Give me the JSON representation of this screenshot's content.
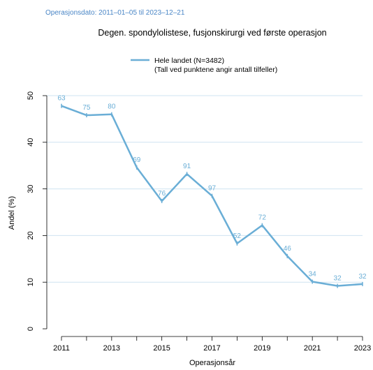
{
  "chart_data": {
    "type": "line",
    "subtitle": "Operasjonsdato: 2011–01–05 til 2023–12–21",
    "title": "Degen. spondylolistese, fusjonskirurgi ved første operasjon",
    "legend": {
      "line1": "Hele landet (N=3482)",
      "line2": "(Tall ved punktene angir antall tilfeller)",
      "placement": "top-center"
    },
    "xlabel": "Operasjonsår",
    "ylabel": "Andel (%)",
    "ylim": [
      0,
      50
    ],
    "xlim": [
      2011,
      2023
    ],
    "yticks": [
      0,
      10,
      20,
      30,
      40,
      50
    ],
    "xticks": [
      2011,
      2012,
      2013,
      2014,
      2015,
      2016,
      2017,
      2018,
      2019,
      2020,
      2021,
      2022,
      2023
    ],
    "xtick_labels": [
      "2011",
      "",
      "2013",
      "",
      "2015",
      "",
      "2017",
      "",
      "2019",
      "",
      "2021",
      "",
      "2023"
    ],
    "grid": "horizontal",
    "colors": {
      "line": "#6aaed6",
      "grid": "#cfe3f1",
      "subtitle": "#4a86c6"
    },
    "series": [
      {
        "name": "Hele landet (N=3482)",
        "x": [
          2011,
          2012,
          2013,
          2014,
          2015,
          2016,
          2017,
          2018,
          2019,
          2020,
          2021,
          2022,
          2023
        ],
        "y": [
          47.8,
          45.8,
          46.0,
          34.6,
          27.4,
          33.2,
          28.5,
          18.3,
          22.2,
          15.6,
          10.1,
          9.2,
          9.6
        ],
        "labels": [
          "63",
          "75",
          "80",
          "69",
          "76",
          "91",
          "97",
          "52",
          "72",
          "46",
          "34",
          "32",
          "32"
        ]
      }
    ]
  }
}
